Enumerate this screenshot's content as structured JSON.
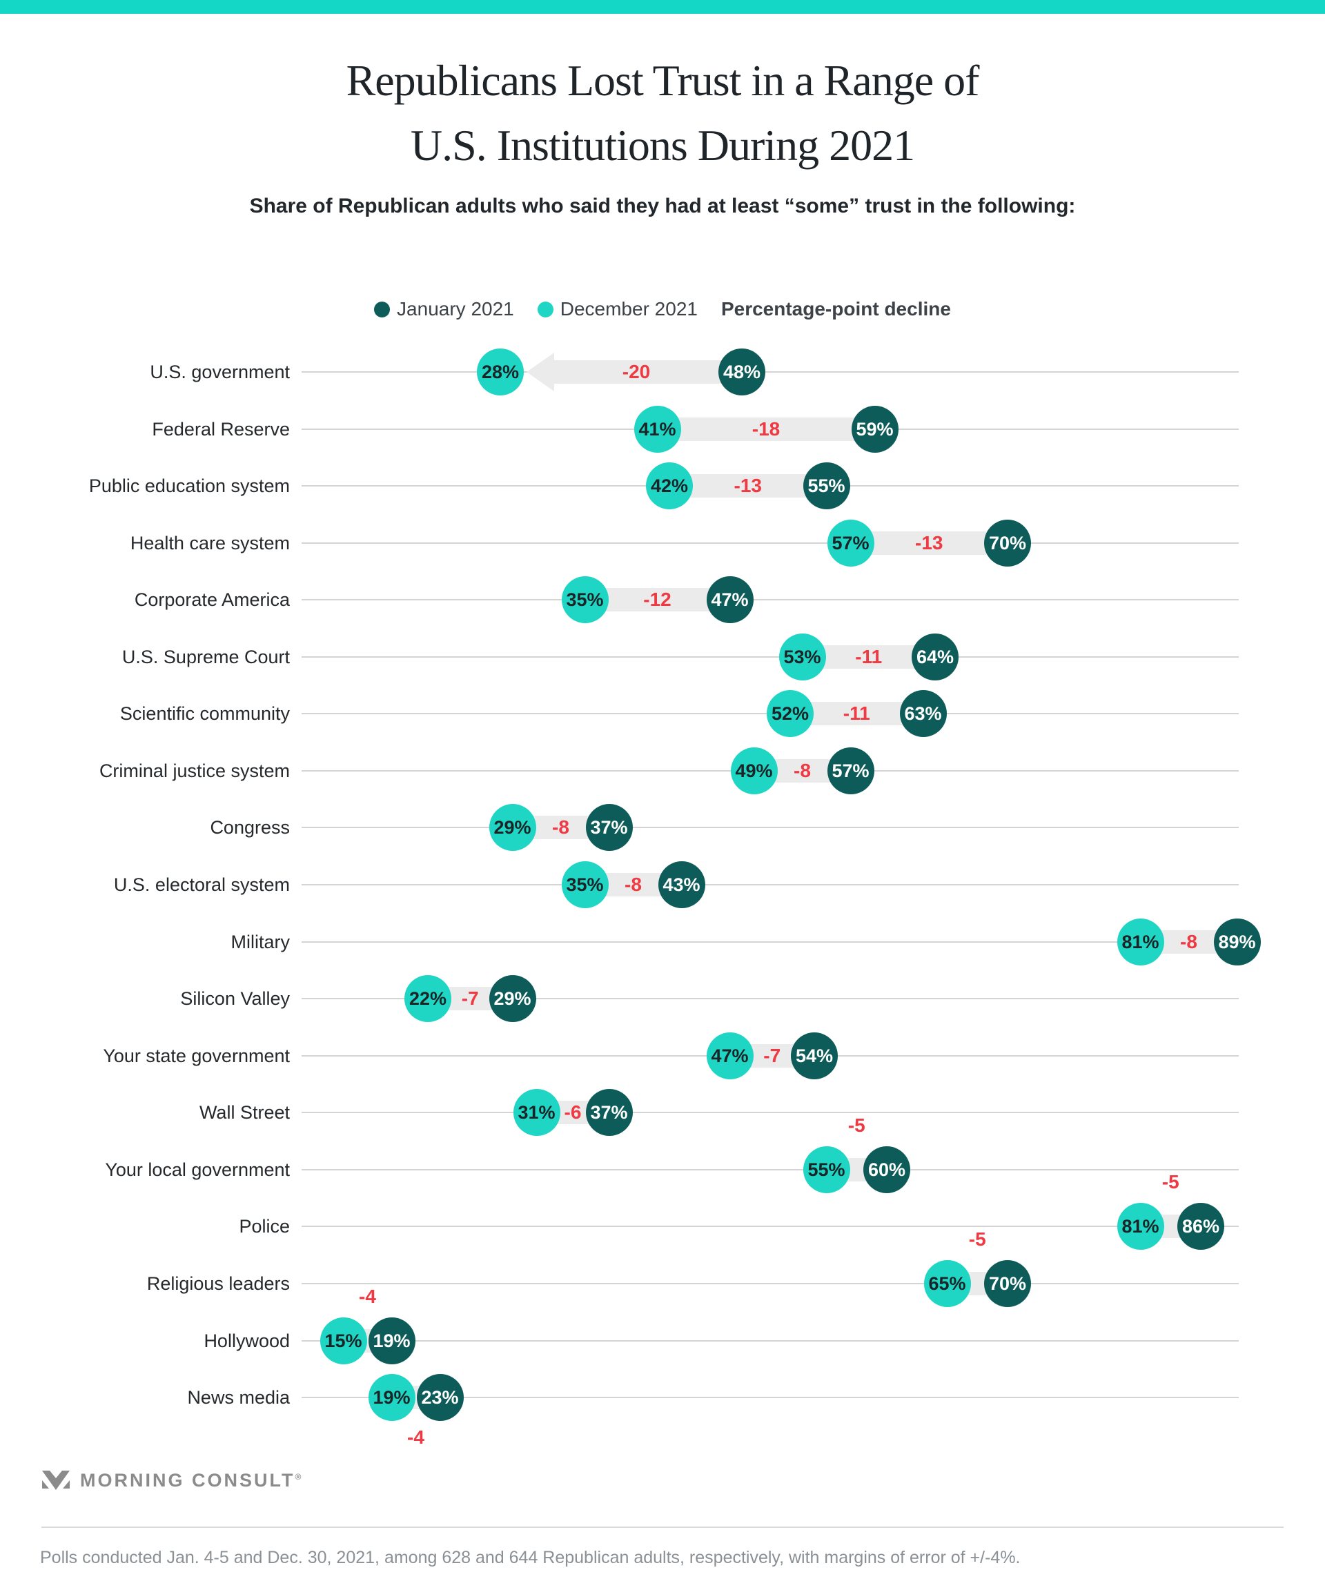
{
  "page": {
    "title_line1": "Republicans Lost Trust in a Range of",
    "title_line2": "U.S. Institutions During 2021",
    "subtitle": "Share of Republican adults who said they had at least “some” trust in the following:",
    "footnote": "Polls conducted Jan. 4-5 and Dec. 30, 2021, among 628 and 644 Republican adults, respectively, with margins of error of +/-4%.",
    "logo_text": "MORNING CONSULT",
    "logo_reg": "®"
  },
  "legend": {
    "series1_label": "January 2021",
    "series2_label": "December 2021",
    "decline_label": "Percentage-point decline"
  },
  "chart_data": {
    "type": "dumbbell",
    "title": "Republicans Lost Trust in a Range of U.S. Institutions During 2021",
    "unit": "percent",
    "series": [
      {
        "name": "January 2021",
        "color": "#0e5c59"
      },
      {
        "name": "December 2021",
        "color": "#1fd6c4"
      }
    ],
    "decline_series_name": "Percentage-point decline",
    "xlim": [
      11.5,
      89.2
    ],
    "grid": "horizontal-row-lines",
    "legend_position": "top-center",
    "rows": [
      {
        "label": "U.S. government",
        "jan": 48,
        "dec": 28,
        "decline": -20,
        "decline_pos": "inline",
        "arrow": true
      },
      {
        "label": "Federal Reserve",
        "jan": 59,
        "dec": 41,
        "decline": -18,
        "decline_pos": "inline"
      },
      {
        "label": "Public education system",
        "jan": 55,
        "dec": 42,
        "decline": -13,
        "decline_pos": "inline"
      },
      {
        "label": "Health care system",
        "jan": 70,
        "dec": 57,
        "decline": -13,
        "decline_pos": "inline"
      },
      {
        "label": "Corporate America",
        "jan": 47,
        "dec": 35,
        "decline": -12,
        "decline_pos": "inline"
      },
      {
        "label": "U.S. Supreme Court",
        "jan": 64,
        "dec": 53,
        "decline": -11,
        "decline_pos": "inline"
      },
      {
        "label": "Scientific community",
        "jan": 63,
        "dec": 52,
        "decline": -11,
        "decline_pos": "inline"
      },
      {
        "label": "Criminal justice system",
        "jan": 57,
        "dec": 49,
        "decline": -8,
        "decline_pos": "inline"
      },
      {
        "label": "Congress",
        "jan": 37,
        "dec": 29,
        "decline": -8,
        "decline_pos": "inline"
      },
      {
        "label": "U.S. electoral system",
        "jan": 43,
        "dec": 35,
        "decline": -8,
        "decline_pos": "inline"
      },
      {
        "label": "Military",
        "jan": 89,
        "dec": 81,
        "decline": -8,
        "decline_pos": "inline"
      },
      {
        "label": "Silicon Valley",
        "jan": 29,
        "dec": 22,
        "decline": -7,
        "decline_pos": "inline"
      },
      {
        "label": "Your state government",
        "jan": 54,
        "dec": 47,
        "decline": -7,
        "decline_pos": "inline"
      },
      {
        "label": "Wall Street",
        "jan": 37,
        "dec": 31,
        "decline": -6,
        "decline_pos": "inline"
      },
      {
        "label": "Your local government",
        "jan": 60,
        "dec": 55,
        "decline": -5,
        "decline_pos": "above"
      },
      {
        "label": "Police",
        "jan": 86,
        "dec": 81,
        "decline": -5,
        "decline_pos": "above"
      },
      {
        "label": "Religious leaders",
        "jan": 70,
        "dec": 65,
        "decline": -5,
        "decline_pos": "above"
      },
      {
        "label": "Hollywood",
        "jan": 19,
        "dec": 15,
        "decline": -4,
        "decline_pos": "above"
      },
      {
        "label": "News media",
        "jan": 23,
        "dec": 19,
        "decline": -4,
        "decline_pos": "below"
      }
    ],
    "colors": {
      "january": "#0e5c59",
      "december": "#1fd6c4",
      "jan_text": "#ffffff",
      "dec_text": "#1b2528",
      "decline": "#ef3a43",
      "band": "#ebebeb",
      "gridline": "#d4d4d4",
      "accent_bar": "#14d7c5"
    }
  }
}
